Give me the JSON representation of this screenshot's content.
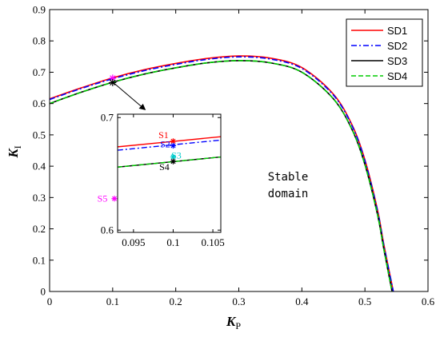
{
  "chart_data": [
    {
      "type": "line",
      "xlabel": "K",
      "xlabel_sub": "P",
      "ylabel": "K",
      "ylabel_sub": "I",
      "xlim": [
        0,
        0.6
      ],
      "ylim": [
        0,
        0.9
      ],
      "xticks": [
        "0",
        "0.1",
        "0.2",
        "0.3",
        "0.4",
        "0.5",
        "0.6"
      ],
      "yticks": [
        "0",
        "0.1",
        "0.2",
        "0.3",
        "0.4",
        "0.5",
        "0.6",
        "0.7",
        "0.8",
        "0.9"
      ],
      "grid": false,
      "legend_position": "top-right",
      "annotation": [
        "Stable",
        "domain"
      ],
      "series": [
        {
          "name": "SD1",
          "color": "#ff0000",
          "dash": "solid",
          "x": [
            0,
            0.05,
            0.1,
            0.15,
            0.2,
            0.25,
            0.3,
            0.35,
            0.4,
            0.45,
            0.48,
            0.5,
            0.52,
            0.53,
            0.545
          ],
          "y": [
            0.615,
            0.65,
            0.682,
            0.708,
            0.728,
            0.744,
            0.752,
            0.745,
            0.715,
            0.63,
            0.53,
            0.42,
            0.26,
            0.15,
            0.0
          ]
        },
        {
          "name": "SD2",
          "color": "#0000ff",
          "dash": "dashdot",
          "x": [
            0,
            0.05,
            0.1,
            0.15,
            0.2,
            0.25,
            0.3,
            0.35,
            0.4,
            0.45,
            0.48,
            0.5,
            0.52,
            0.53,
            0.545
          ],
          "y": [
            0.613,
            0.648,
            0.679,
            0.705,
            0.725,
            0.741,
            0.749,
            0.742,
            0.712,
            0.627,
            0.527,
            0.417,
            0.257,
            0.147,
            0.0
          ]
        },
        {
          "name": "SD3",
          "color": "#000000",
          "dash": "solid",
          "x": [
            0,
            0.05,
            0.1,
            0.15,
            0.2,
            0.25,
            0.3,
            0.35,
            0.4,
            0.45,
            0.48,
            0.5,
            0.52,
            0.53,
            0.543
          ],
          "y": [
            0.6,
            0.636,
            0.668,
            0.694,
            0.714,
            0.73,
            0.737,
            0.73,
            0.7,
            0.615,
            0.515,
            0.405,
            0.245,
            0.135,
            0.0
          ]
        },
        {
          "name": "SD4",
          "color": "#00cc00",
          "dash": "dashed",
          "x": [
            0,
            0.05,
            0.1,
            0.15,
            0.2,
            0.25,
            0.3,
            0.35,
            0.4,
            0.45,
            0.48,
            0.5,
            0.52,
            0.53,
            0.543
          ],
          "y": [
            0.6,
            0.636,
            0.668,
            0.694,
            0.714,
            0.73,
            0.737,
            0.73,
            0.7,
            0.615,
            0.515,
            0.405,
            0.245,
            0.135,
            0.0
          ]
        }
      ],
      "markers": [
        {
          "x": 0.1,
          "y": 0.681,
          "color": "#ff00ff",
          "symbol": "*"
        },
        {
          "x": 0.1,
          "y": 0.667,
          "color": "#000000",
          "symbol": "*"
        }
      ]
    },
    {
      "type": "line",
      "role": "inset",
      "xlim": [
        0.093,
        0.106
      ],
      "ylim": [
        0.598,
        0.703
      ],
      "xticks": [
        "0.095",
        "0.1",
        "0.105"
      ],
      "xtick_values": [
        0.095,
        0.1,
        0.105
      ],
      "yticks": [
        "0.6",
        "0.7"
      ],
      "ytick_values": [
        0.6,
        0.7
      ],
      "series": [
        {
          "name": "SD1",
          "color": "#ff0000",
          "dash": "solid",
          "x": [
            0.093,
            0.106
          ],
          "y": [
            0.674,
            0.683
          ]
        },
        {
          "name": "SD2",
          "color": "#0000ff",
          "dash": "dashdot",
          "x": [
            0.093,
            0.106
          ],
          "y": [
            0.671,
            0.68
          ]
        },
        {
          "name": "SD3",
          "color": "#000000",
          "dash": "solid",
          "x": [
            0.093,
            0.106
          ],
          "y": [
            0.656,
            0.665
          ]
        },
        {
          "name": "SD4",
          "color": "#00cc00",
          "dash": "dashed",
          "x": [
            0.093,
            0.106
          ],
          "y": [
            0.656,
            0.665
          ]
        }
      ],
      "points": [
        {
          "label": "S1",
          "x": 0.1,
          "y": 0.679,
          "color": "#ff0000"
        },
        {
          "label": "S2",
          "x": 0.1,
          "y": 0.675,
          "color": "#0000ff"
        },
        {
          "label": "S3",
          "x": 0.1,
          "y": 0.665,
          "color": "#00cccc"
        },
        {
          "label": "S4",
          "x": 0.1,
          "y": 0.661,
          "color": "#000000"
        },
        {
          "label": "S5",
          "x": 0.092,
          "y": 0.628,
          "color": "#ff00ff"
        }
      ]
    }
  ]
}
